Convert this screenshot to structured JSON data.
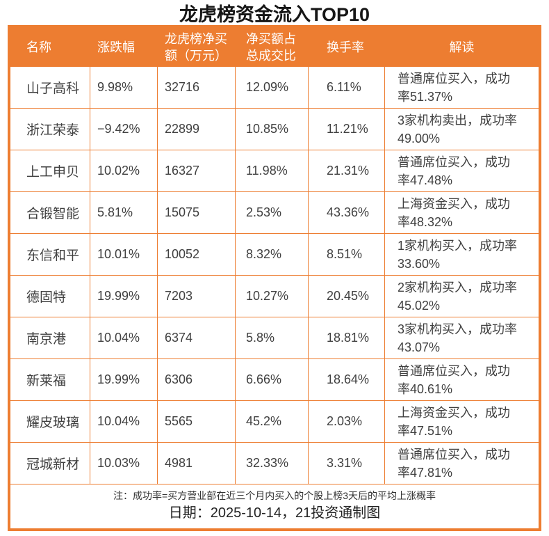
{
  "title": "龙虎榜资金流入TOP10",
  "chart_data": {
    "type": "table",
    "title": "龙虎榜资金流入TOP10",
    "columns": [
      "名称",
      "涨跌幅",
      "龙虎榜净买额（万元）",
      "净买额占总成交比",
      "换手率",
      "解读"
    ],
    "rows": [
      [
        "山子高科",
        "9.98%",
        "32716",
        "12.09%",
        "6.11%",
        "普通席位买入，成功率51.37%"
      ],
      [
        "浙江荣泰",
        "−9.42%",
        "22899",
        "10.85%",
        "11.21%",
        "3家机构卖出，成功率49.00%"
      ],
      [
        "上工申贝",
        "10.02%",
        "16327",
        "11.98%",
        "21.31%",
        "普通席位买入，成功率47.48%"
      ],
      [
        "合锻智能",
        "5.81%",
        "15075",
        "2.53%",
        "43.36%",
        "上海资金买入，成功率48.32%"
      ],
      [
        "东信和平",
        "10.01%",
        "10052",
        "8.32%",
        "8.51%",
        "1家机构买入，成功率33.60%"
      ],
      [
        "德固特",
        "19.99%",
        "7203",
        "10.27%",
        "20.45%",
        "2家机构买入，成功率45.02%"
      ],
      [
        "南京港",
        "10.04%",
        "6374",
        "5.8%",
        "18.81%",
        "3家机构买入，成功率43.07%"
      ],
      [
        "新莱福",
        "19.99%",
        "6306",
        "6.66%",
        "18.64%",
        "普通席位买入，成功率40.61%"
      ],
      [
        "耀皮玻璃",
        "10.04%",
        "5565",
        "45.2%",
        "2.03%",
        "上海资金买入，成功率47.51%"
      ],
      [
        "冠城新材",
        "10.03%",
        "4981",
        "32.33%",
        "3.31%",
        "普通席位买入，成功率47.81%"
      ]
    ],
    "note": "注：成功率=买方营业部在近三个月内买入的个股上榜3天后的平均上涨概率",
    "date_line": "日期：2025-10-14，21投资通制图"
  },
  "colors": {
    "accent_orange": "#ED7D31",
    "header_text": "#FFFFFF",
    "body_text": "#404040"
  }
}
